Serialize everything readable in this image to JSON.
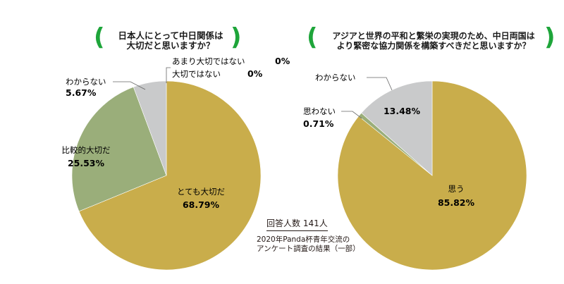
{
  "charts": [
    {
      "title_lines": [
        "日本人にとって中日関係は",
        "大切だと思いますか？"
      ],
      "chart_data": {
        "type": "pie",
        "slices": [
          {
            "label": "とても大切だ",
            "value": 68.79,
            "pct_text": "68.79%",
            "color": "#c9ad4b"
          },
          {
            "label": "比較的大切だ",
            "value": 25.53,
            "pct_text": "25.53%",
            "color": "#9aae7a"
          },
          {
            "label": "わからない",
            "value": 5.67,
            "pct_text": "5.67%",
            "color": "#c9cacb"
          },
          {
            "label": "大切ではない",
            "value": 0,
            "pct_text": "0%",
            "color": "#c9cacb"
          },
          {
            "label": "あまり大切ではない",
            "value": 0,
            "pct_text": "0%",
            "color": "#c9cacb"
          }
        ]
      }
    },
    {
      "title_lines": [
        "アジアと世界の平和と繁栄の実現のため、中日両国は",
        "より緊密な協力関係を構築すべきだと思いますか？"
      ],
      "chart_data": {
        "type": "pie",
        "slices": [
          {
            "label": "思う",
            "value": 85.82,
            "pct_text": "85.82%",
            "color": "#c9ad4b"
          },
          {
            "label": "思わない",
            "value": 0.71,
            "pct_text": "0.71%",
            "color": "#9aae7a"
          },
          {
            "label": "わからない",
            "value": 13.48,
            "pct_text": "13.48%",
            "color": "#c9cacb"
          }
        ]
      }
    }
  ],
  "respondents": "回答人数 141人",
  "source_lines": [
    "2020年Panda杯青年交流の",
    "アンケート調査の結果（一部）"
  ],
  "colors": {
    "accent_green": "#1ea53a",
    "leader_line": "#666666"
  }
}
